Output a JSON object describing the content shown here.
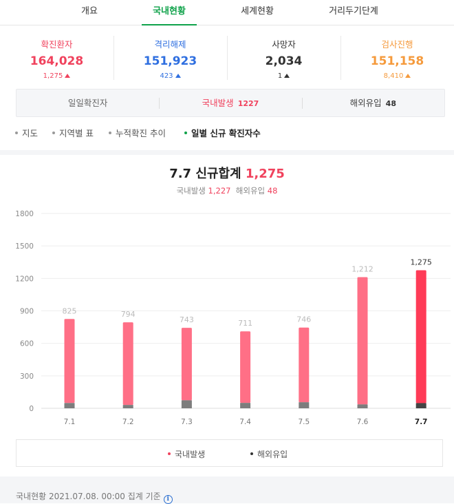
{
  "tabs": [
    "개요",
    "국내현황",
    "세계현황",
    "거리두기단계"
  ],
  "stats": [
    {
      "label": "확진환자",
      "value": "164,028",
      "delta": "1,275",
      "color": "#f0425d"
    },
    {
      "label": "격리해제",
      "value": "151,923",
      "delta": "423",
      "color": "#2f6fe0"
    },
    {
      "label": "사망자",
      "value": "2,034",
      "delta": "1",
      "color": "#333333"
    },
    {
      "label": "검사진행",
      "value": "151,158",
      "delta": "8,410",
      "color": "#f59a3c"
    }
  ],
  "daily": {
    "title": "일일확진자",
    "domestic_label": "국내발생",
    "domestic_value": "1227",
    "imported_label": "해외유입",
    "imported_value": "48"
  },
  "subnav": [
    "지도",
    "지역별 표",
    "누적확진 추이",
    "일별 신규 확진자수"
  ],
  "chart_data": {
    "type": "bar",
    "title": "7.7 신규합계",
    "title_value": "1,275",
    "subtitle": {
      "domestic_label": "국내발생",
      "domestic_value": "1,227",
      "imported_label": "해외유입",
      "imported_value": "48"
    },
    "categories": [
      "7.1",
      "7.2",
      "7.3",
      "7.4",
      "7.5",
      "7.6",
      "7.7"
    ],
    "totals": [
      825,
      794,
      743,
      711,
      746,
      1212,
      1275
    ],
    "total_labels": [
      "825",
      "794",
      "743",
      "711",
      "746",
      "1,212",
      "1,275"
    ],
    "series": [
      {
        "name": "국내발생",
        "values": [
          776,
          763,
          669,
          661,
          690,
          1176,
          1227
        ],
        "color": "#ff6f86",
        "highlight_color": "#ff3b57"
      },
      {
        "name": "해외유입",
        "values": [
          49,
          31,
          74,
          50,
          56,
          36,
          48
        ],
        "color": "#7d7d7d",
        "highlight_color": "#444444"
      }
    ],
    "yticks": [
      0,
      300,
      600,
      900,
      1200,
      1500,
      1800
    ],
    "ylim": [
      0,
      1800
    ],
    "grid": true,
    "legend": "bottom"
  },
  "legend": [
    {
      "label": "국내발생",
      "color": "#f0425d"
    },
    {
      "label": "해외유입",
      "color": "#333333"
    }
  ],
  "footer": {
    "label": "국내현황",
    "datetime": "2021.07.08. 00:00",
    "suffix": "집계 기준",
    "info_icon": "info-icon"
  }
}
